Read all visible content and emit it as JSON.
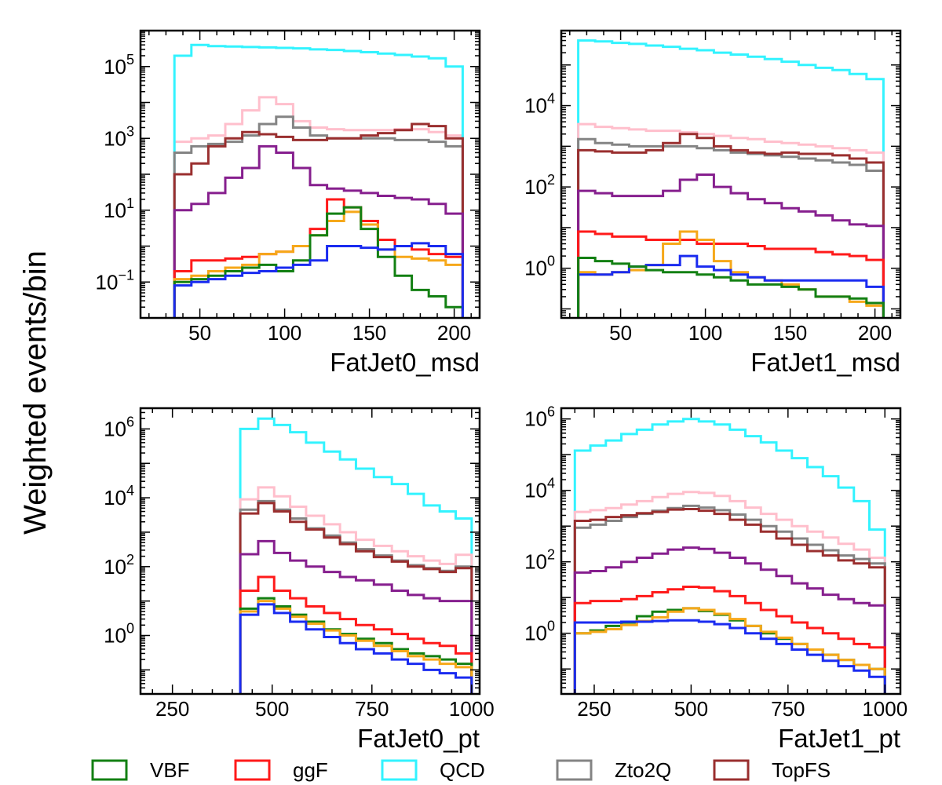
{
  "figure": {
    "ylabel": "Weighted events/bin"
  },
  "legend": [
    {
      "name": "VBF",
      "color": "#138013"
    },
    {
      "name": "ggF",
      "color": "#ff1a1a"
    },
    {
      "name": "QCD",
      "color": "#33f3ff"
    },
    {
      "name": "Zto2Q",
      "color": "#848484"
    },
    {
      "name": "TopFS",
      "color": "#9a2f2f"
    }
  ],
  "colors": {
    "VBF": "#138013",
    "ggF": "#ff1a1a",
    "QCD": "#33f3ff",
    "Zto2Q": "#848484",
    "TopFS": "#9a2f2f",
    "blue": "#1a2bf0",
    "orange": "#f6a81a",
    "purple": "#861f8e",
    "pink": "#ffbfcc"
  },
  "chart_data": [
    {
      "type": "step-histogram",
      "xlabel": "FatJet0_msd",
      "ylabel": "",
      "yscale": "log",
      "xlim": [
        15,
        215
      ],
      "ylim": [
        0.01,
        1000000
      ],
      "xticks": [
        50,
        100,
        150,
        200
      ],
      "yticks": [
        {
          "value": 0.1,
          "base": "10",
          "exp": "−1"
        },
        {
          "value": 10,
          "base": "10",
          "exp": "1"
        },
        {
          "value": 1000,
          "base": "10",
          "exp": "3"
        },
        {
          "value": 100000,
          "base": "10",
          "exp": "5"
        }
      ],
      "bin_edges": [
        35,
        45,
        55,
        65,
        75,
        85,
        95,
        105,
        115,
        125,
        135,
        145,
        155,
        165,
        175,
        185,
        195,
        205
      ],
      "series": [
        {
          "color": "pink",
          "values": [
            800,
            1000,
            1200,
            2500,
            6000,
            14000,
            9000,
            3000,
            2000,
            1800,
            1700,
            1700,
            1700,
            1800,
            1800,
            1500,
            1200
          ]
        },
        {
          "color": "QCD",
          "values": [
            200000,
            400000,
            370000,
            360000,
            350000,
            340000,
            330000,
            320000,
            300000,
            290000,
            270000,
            250000,
            230000,
            210000,
            190000,
            170000,
            100000
          ]
        },
        {
          "color": "Zto2Q",
          "values": [
            400,
            600,
            700,
            800,
            1200,
            2500,
            4000,
            2000,
            1200,
            1000,
            1000,
            1000,
            1000,
            900,
            900,
            800,
            600
          ]
        },
        {
          "color": "TopFS",
          "values": [
            100,
            200,
            600,
            1000,
            1500,
            1300,
            1100,
            900,
            900,
            1000,
            1000,
            1200,
            1400,
            1700,
            2500,
            2200,
            1000
          ]
        },
        {
          "color": "purple",
          "values": [
            10,
            15,
            30,
            80,
            150,
            600,
            400,
            150,
            50,
            40,
            35,
            30,
            25,
            22,
            20,
            15,
            8
          ]
        },
        {
          "color": "ggF",
          "values": [
            0.2,
            0.4,
            0.4,
            0.45,
            0.5,
            0.6,
            0.7,
            1.0,
            3,
            20,
            12,
            5,
            1.5,
            1.0,
            0.8,
            0.6,
            0.5
          ]
        },
        {
          "color": "orange",
          "values": [
            0.12,
            0.15,
            0.2,
            0.25,
            0.3,
            0.6,
            0.7,
            1.0,
            2,
            5,
            9,
            4,
            0.8,
            0.5,
            0.45,
            0.4,
            0.3
          ]
        },
        {
          "color": "VBF",
          "values": [
            0.1,
            0.12,
            0.15,
            0.2,
            0.25,
            0.3,
            0.2,
            0.4,
            2,
            8,
            12,
            3,
            0.5,
            0.15,
            0.06,
            0.04,
            0.02
          ]
        },
        {
          "color": "blue",
          "values": [
            0.08,
            0.1,
            0.12,
            0.15,
            0.18,
            0.2,
            0.25,
            0.3,
            0.4,
            1.0,
            1.0,
            0.9,
            0.8,
            1.0,
            1.2,
            1.0,
            0.6
          ]
        }
      ]
    },
    {
      "type": "step-histogram",
      "xlabel": "FatJet1_msd",
      "ylabel": "",
      "yscale": "log",
      "xlim": [
        15,
        215
      ],
      "ylim": [
        0.06,
        700000
      ],
      "xticks": [
        50,
        100,
        150,
        200
      ],
      "yticks": [
        {
          "value": 1,
          "base": "10",
          "exp": "0"
        },
        {
          "value": 100,
          "base": "10",
          "exp": "2"
        },
        {
          "value": 10000,
          "base": "10",
          "exp": "4"
        }
      ],
      "bin_edges": [
        25,
        35,
        45,
        55,
        65,
        75,
        85,
        95,
        105,
        115,
        125,
        135,
        145,
        155,
        165,
        175,
        185,
        195,
        205
      ],
      "series": [
        {
          "color": "QCD",
          "values": [
            400000,
            380000,
            350000,
            330000,
            300000,
            280000,
            250000,
            230000,
            200000,
            180000,
            160000,
            140000,
            120000,
            100000,
            85000,
            75000,
            60000,
            45000
          ]
        },
        {
          "color": "pink",
          "values": [
            3500,
            3000,
            2800,
            2600,
            2400,
            2400,
            2200,
            2000,
            1800,
            1600,
            1500,
            1300,
            1200,
            1100,
            1000,
            900,
            800,
            700
          ]
        },
        {
          "color": "Zto2Q",
          "values": [
            1500,
            1200,
            1100,
            1000,
            1000,
            1000,
            1000,
            900,
            800,
            700,
            650,
            600,
            550,
            500,
            450,
            400,
            350,
            250
          ]
        },
        {
          "color": "TopFS",
          "values": [
            800,
            750,
            700,
            700,
            800,
            1200,
            2000,
            1600,
            1000,
            800,
            700,
            650,
            700,
            650,
            650,
            600,
            500,
            400
          ]
        },
        {
          "color": "purple",
          "values": [
            80,
            70,
            60,
            60,
            60,
            80,
            150,
            200,
            100,
            70,
            50,
            40,
            30,
            25,
            20,
            15,
            12,
            11
          ]
        },
        {
          "color": "ggF",
          "values": [
            8,
            7,
            6,
            6,
            5,
            5,
            5,
            4,
            4,
            4,
            3.5,
            3,
            3,
            3,
            2.5,
            2.2,
            2,
            1.6
          ]
        },
        {
          "color": "orange",
          "values": [
            0.8,
            0.7,
            0.8,
            0.9,
            1.2,
            4,
            8,
            5,
            1.5,
            0.8,
            0.6,
            0.5,
            0.4,
            0.3,
            0.2,
            0.2,
            0.15,
            0.12
          ]
        },
        {
          "color": "blue",
          "values": [
            0.7,
            0.7,
            0.8,
            1.1,
            1.2,
            1.2,
            2,
            1.1,
            0.9,
            0.7,
            0.6,
            0.5,
            0.5,
            0.5,
            0.5,
            0.5,
            0.5,
            0.35
          ]
        },
        {
          "color": "VBF",
          "values": [
            1.8,
            1.5,
            1.3,
            1.1,
            0.9,
            0.8,
            0.8,
            0.7,
            0.6,
            0.5,
            0.4,
            0.4,
            0.35,
            0.3,
            0.2,
            0.2,
            0.18,
            0.14
          ]
        }
      ]
    },
    {
      "type": "step-histogram",
      "xlabel": "FatJet0_pt",
      "ylabel": "",
      "yscale": "log",
      "xlim": [
        170,
        1020
      ],
      "ylim": [
        0.02,
        4000000
      ],
      "xticks": [
        250,
        500,
        750,
        1000
      ],
      "yticks": [
        {
          "value": 1,
          "base": "10",
          "exp": "0"
        },
        {
          "value": 100,
          "base": "10",
          "exp": "2"
        },
        {
          "value": 10000,
          "base": "10",
          "exp": "4"
        },
        {
          "value": 1000000,
          "base": "10",
          "exp": "6"
        }
      ],
      "bin_edges": [
        420,
        465,
        505,
        545,
        585,
        630,
        670,
        710,
        755,
        800,
        840,
        880,
        920,
        960,
        1000
      ],
      "series": [
        {
          "color": "QCD",
          "values": [
            1000000,
            2000000,
            1300000,
            800000,
            400000,
            220000,
            130000,
            70000,
            40000,
            25000,
            13000,
            6000,
            4000,
            2500
          ]
        },
        {
          "color": "pink",
          "values": [
            9000,
            20000,
            11000,
            5500,
            3000,
            1700,
            1000,
            600,
            400,
            280,
            200,
            150,
            120,
            220
          ]
        },
        {
          "color": "Zto2Q",
          "values": [
            4500,
            8000,
            4500,
            2500,
            1300,
            800,
            500,
            320,
            210,
            150,
            110,
            90,
            75,
            100
          ]
        },
        {
          "color": "TopFS",
          "values": [
            3500,
            7000,
            4000,
            2000,
            1200,
            700,
            450,
            280,
            190,
            140,
            100,
            85,
            70,
            90
          ]
        },
        {
          "color": "purple",
          "values": [
            230,
            550,
            250,
            150,
            100,
            70,
            50,
            40,
            30,
            20,
            15,
            12,
            10,
            10
          ]
        },
        {
          "color": "ggF",
          "values": [
            20,
            50,
            20,
            12,
            7,
            4.5,
            3,
            2,
            1.5,
            1.1,
            0.8,
            0.6,
            0.5,
            0.3
          ]
        },
        {
          "color": "VBF",
          "values": [
            6,
            12,
            7,
            4,
            2.5,
            1.5,
            1.1,
            0.8,
            0.6,
            0.4,
            0.3,
            0.25,
            0.2,
            0.15
          ]
        },
        {
          "color": "orange",
          "values": [
            5,
            10,
            6,
            3.5,
            2.2,
            1.4,
            1.0,
            0.7,
            0.5,
            0.35,
            0.25,
            0.2,
            0.15,
            0.12
          ]
        },
        {
          "color": "blue",
          "values": [
            4,
            8,
            4.5,
            2.5,
            1.5,
            0.9,
            0.6,
            0.4,
            0.3,
            0.2,
            0.15,
            0.1,
            0.08,
            0.06
          ]
        }
      ]
    },
    {
      "type": "step-histogram",
      "xlabel": "FatJet1_pt",
      "ylabel": "",
      "yscale": "log",
      "xlim": [
        165,
        1040
      ],
      "ylim": [
        0.02,
        2000000
      ],
      "xticks": [
        250,
        500,
        750,
        1000
      ],
      "yticks": [
        {
          "value": 1,
          "base": "10",
          "exp": "0"
        },
        {
          "value": 100,
          "base": "10",
          "exp": "2"
        },
        {
          "value": 10000,
          "base": "10",
          "exp": "4"
        },
        {
          "value": 1000000,
          "base": "10",
          "exp": "6"
        }
      ],
      "bin_edges": [
        200,
        240,
        280,
        320,
        360,
        400,
        440,
        480,
        520,
        560,
        600,
        640,
        680,
        720,
        760,
        800,
        840,
        880,
        920,
        960,
        1000
      ],
      "series": [
        {
          "color": "QCD",
          "values": [
            130000,
            180000,
            250000,
            380000,
            500000,
            700000,
            850000,
            1000000,
            850000,
            700000,
            500000,
            330000,
            220000,
            130000,
            80000,
            45000,
            25000,
            12000,
            5000,
            800
          ]
        },
        {
          "color": "pink",
          "values": [
            2500,
            2800,
            3200,
            4000,
            5000,
            6500,
            8000,
            9000,
            8500,
            7000,
            5000,
            3300,
            2200,
            1500,
            1000,
            700,
            480,
            320,
            220,
            130
          ]
        },
        {
          "color": "Zto2Q",
          "values": [
            900,
            1100,
            1400,
            1800,
            2200,
            2700,
            3200,
            3700,
            3300,
            2800,
            2100,
            1500,
            1000,
            700,
            450,
            300,
            210,
            150,
            120,
            90
          ]
        },
        {
          "color": "TopFS",
          "values": [
            1400,
            1500,
            1800,
            2000,
            2300,
            2500,
            2900,
            3000,
            2700,
            2200,
            1500,
            1100,
            700,
            450,
            300,
            200,
            150,
            110,
            90,
            70
          ]
        },
        {
          "color": "purple",
          "values": [
            50,
            55,
            70,
            100,
            130,
            170,
            220,
            250,
            230,
            180,
            130,
            90,
            60,
            40,
            25,
            18,
            12,
            9,
            7,
            6
          ]
        },
        {
          "color": "ggF",
          "values": [
            7,
            8,
            8,
            9,
            11,
            14,
            17,
            20,
            19,
            15,
            11,
            7,
            4.5,
            3,
            2,
            1.4,
            1,
            0.7,
            0.5,
            0.4
          ]
        },
        {
          "color": "VBF",
          "values": [
            1.0,
            1.2,
            1.6,
            2,
            3,
            4,
            4.5,
            5,
            4.2,
            3.3,
            2.3,
            1.6,
            1.0,
            0.7,
            0.5,
            0.35,
            0.25,
            0.18,
            0.13,
            0.1
          ]
        },
        {
          "color": "orange",
          "values": [
            1.0,
            1.1,
            1.3,
            1.7,
            2.2,
            2.8,
            4,
            5,
            4.5,
            3.5,
            2.5,
            1.6,
            1.1,
            0.75,
            0.5,
            0.35,
            0.25,
            0.18,
            0.13,
            0.1
          ]
        },
        {
          "color": "blue",
          "values": [
            2,
            2,
            2,
            2.1,
            2.1,
            2.2,
            2.3,
            2.3,
            2.1,
            1.8,
            1.4,
            1.0,
            0.7,
            0.5,
            0.35,
            0.25,
            0.17,
            0.12,
            0.09,
            0.06
          ]
        }
      ]
    }
  ]
}
